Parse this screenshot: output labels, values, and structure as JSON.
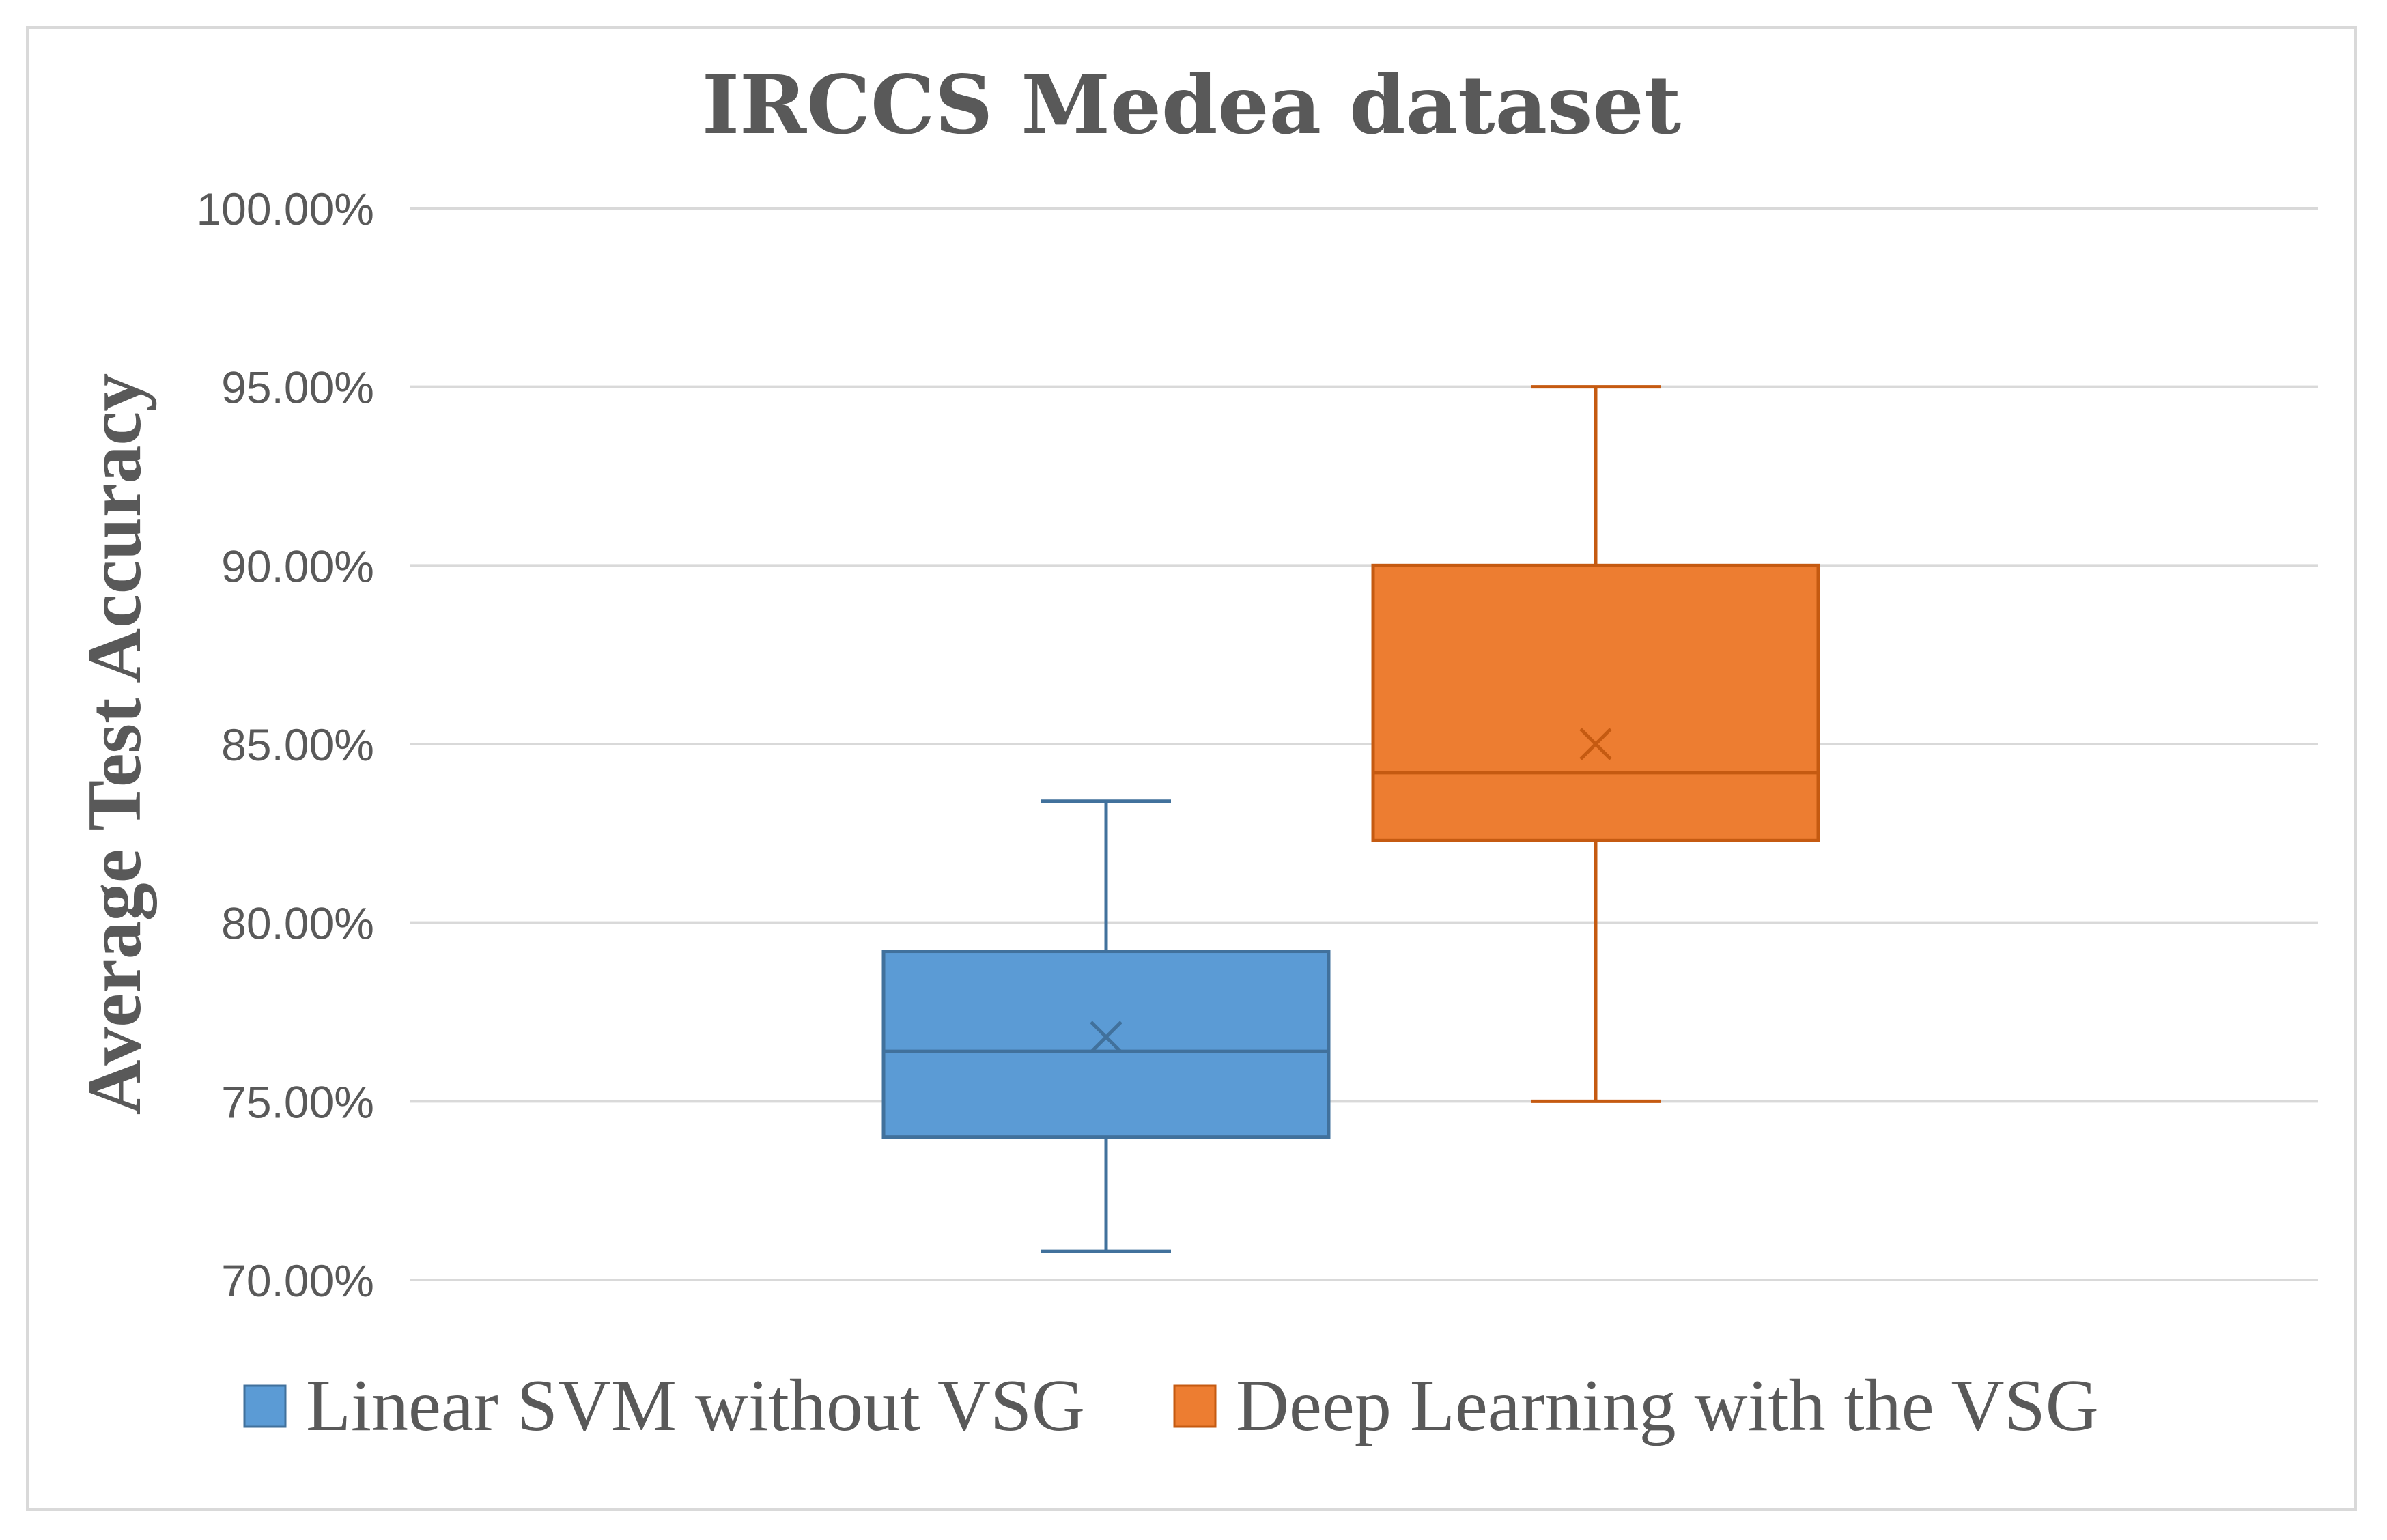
{
  "chart_data": {
    "type": "box",
    "title": "IRCCS Medea dataset",
    "xlabel": "",
    "ylabel": "Average Test Accuracy",
    "ylim": [
      70,
      100
    ],
    "yticks": [
      {
        "value": 100,
        "label": "100.00%"
      },
      {
        "value": 95,
        "label": "95.00%"
      },
      {
        "value": 90,
        "label": "90.00%"
      },
      {
        "value": 85,
        "label": "85.00%"
      },
      {
        "value": 80,
        "label": "80.00%"
      },
      {
        "value": 75,
        "label": "75.00%"
      },
      {
        "value": 70,
        "label": "70.00%"
      }
    ],
    "grid": true,
    "legend_position": "bottom",
    "series": [
      {
        "name": "Linear SVM without VSG",
        "color": "#5b9bd5",
        "stroke": "#41719c",
        "min": 70.8,
        "q1": 74.0,
        "median": 76.4,
        "mean": 76.8,
        "q3": 79.2,
        "max": 83.4
      },
      {
        "name": "Deep Learning with the VSG",
        "color": "#ed7d31",
        "stroke": "#c55a11",
        "min": 75.0,
        "q1": 82.3,
        "median": 84.2,
        "mean": 85.0,
        "q3": 90.0,
        "max": 95.0
      }
    ]
  }
}
